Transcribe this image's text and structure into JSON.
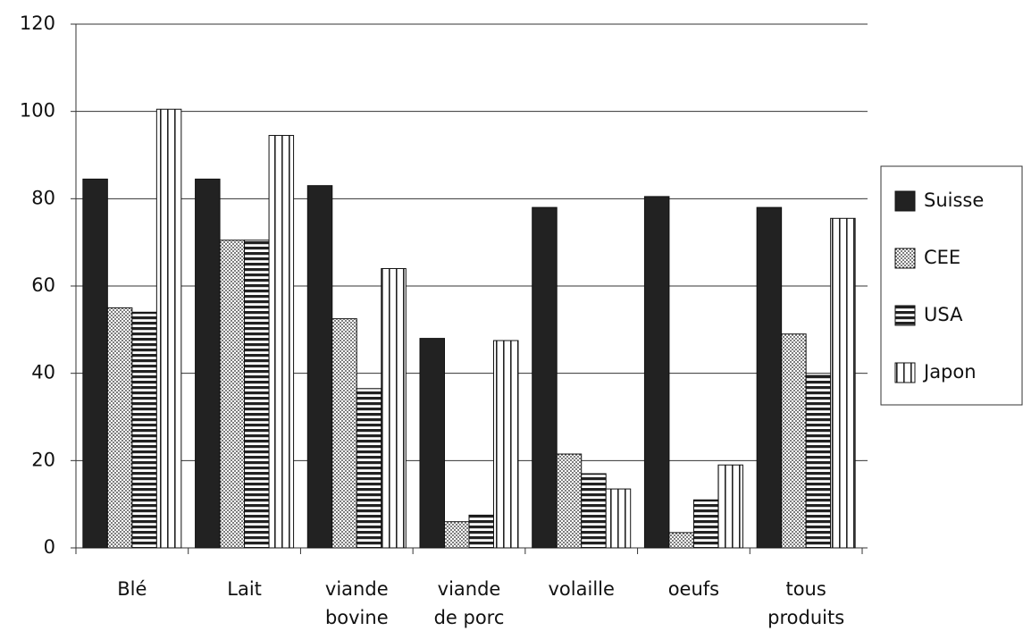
{
  "chart_data": {
    "type": "bar",
    "categories": [
      "Blé",
      "Lait",
      "viande bovine",
      "viande de porc",
      "volaille",
      "oeufs",
      "tous produits"
    ],
    "series": [
      {
        "name": "Suisse",
        "color": "#222222",
        "pattern": "solid",
        "values": [
          84.5,
          84.5,
          83,
          48,
          78,
          80.5,
          78
        ]
      },
      {
        "name": "CEE",
        "color": "#222222",
        "pattern": "dots",
        "values": [
          55,
          70.5,
          52.5,
          6,
          21.5,
          3.5,
          49
        ]
      },
      {
        "name": "USA",
        "color": "#222222",
        "pattern": "hstripes",
        "values": [
          54,
          70.5,
          36.5,
          7.5,
          17,
          11,
          39.5
        ]
      },
      {
        "name": "Japon",
        "color": "#222222",
        "pattern": "vstripes",
        "values": [
          100.5,
          94.5,
          64,
          47.5,
          13.5,
          19,
          75.5
        ]
      }
    ],
    "ylim": [
      0,
      120
    ],
    "yticks": [
      0,
      20,
      40,
      60,
      80,
      100,
      120
    ],
    "grid": true,
    "legend": "right"
  }
}
